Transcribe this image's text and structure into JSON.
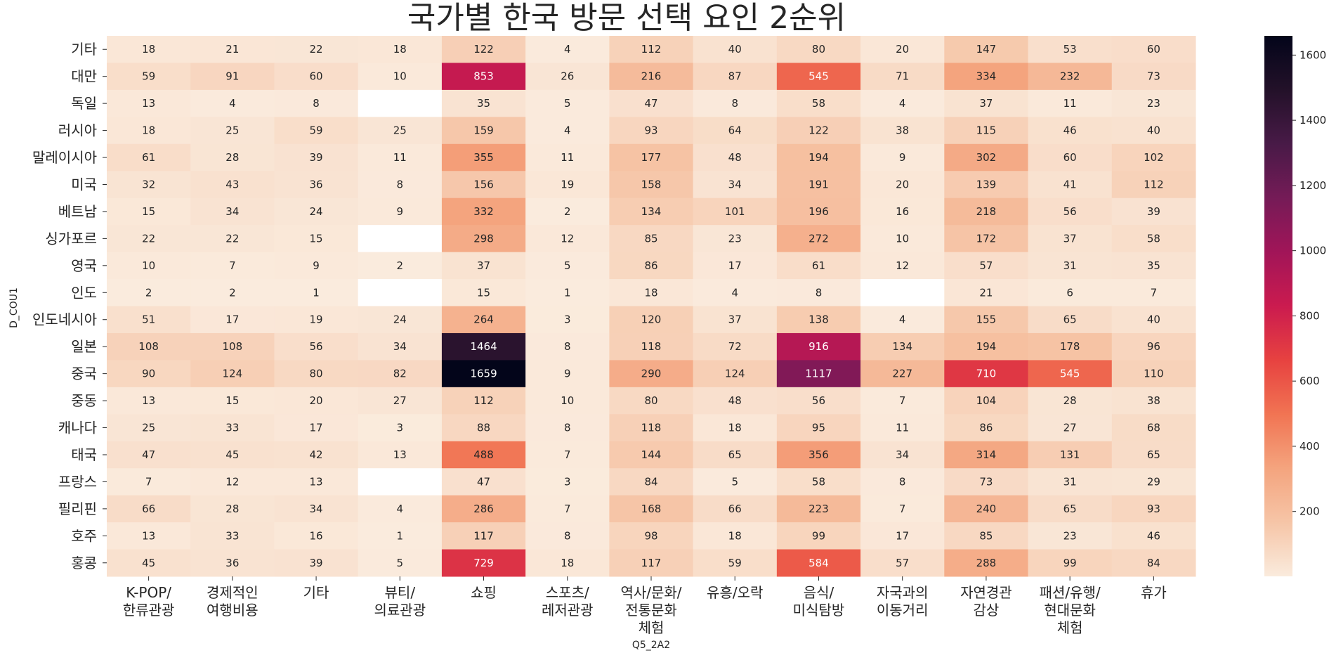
{
  "chart_data": {
    "type": "heatmap",
    "title": "국가별 한국 방문 선택 요인 2순위",
    "xlabel": "Q5_2A2",
    "ylabel": "D_COU1",
    "x_categories": [
      "K-POP/\n한류관광",
      "경제적인\n여행비용",
      "기타",
      "뷰티/\n의료관광",
      "쇼핑",
      "스포츠/\n레저관광",
      "역사/문화/\n전통문화\n체험",
      "유흥/오락",
      "음식/\n미식탐방",
      "자국과의\n이동거리",
      "자연경관\n감상",
      "패션/유행/\n현대문화\n체험",
      "휴가"
    ],
    "y_categories": [
      "기타",
      "대만",
      "독일",
      "러시아",
      "말레이시아",
      "미국",
      "베트남",
      "싱가포르",
      "영국",
      "인도",
      "인도네시아",
      "일본",
      "중국",
      "중동",
      "캐나다",
      "태국",
      "프랑스",
      "필리핀",
      "호주",
      "홍콩"
    ],
    "values": [
      [
        18,
        21,
        22,
        18,
        122,
        4,
        112,
        40,
        80,
        20,
        147,
        53,
        60
      ],
      [
        59,
        91,
        60,
        10,
        853,
        26,
        216,
        87,
        545,
        71,
        334,
        232,
        73
      ],
      [
        13,
        4,
        8,
        null,
        35,
        5,
        47,
        8,
        58,
        4,
        37,
        11,
        23
      ],
      [
        18,
        25,
        59,
        25,
        159,
        4,
        93,
        64,
        122,
        38,
        115,
        46,
        40
      ],
      [
        61,
        28,
        39,
        11,
        355,
        11,
        177,
        48,
        194,
        9,
        302,
        60,
        102
      ],
      [
        32,
        43,
        36,
        8,
        156,
        19,
        158,
        34,
        191,
        20,
        139,
        41,
        112
      ],
      [
        15,
        34,
        24,
        9,
        332,
        2,
        134,
        101,
        196,
        16,
        218,
        56,
        39
      ],
      [
        22,
        22,
        15,
        null,
        298,
        12,
        85,
        23,
        272,
        10,
        172,
        37,
        58
      ],
      [
        10,
        7,
        9,
        2,
        37,
        5,
        86,
        17,
        61,
        12,
        57,
        31,
        35
      ],
      [
        2,
        2,
        1,
        null,
        15,
        1,
        18,
        4,
        8,
        null,
        21,
        6,
        7
      ],
      [
        51,
        17,
        19,
        24,
        264,
        3,
        120,
        37,
        138,
        4,
        155,
        65,
        40
      ],
      [
        108,
        108,
        56,
        34,
        1464,
        8,
        118,
        72,
        916,
        134,
        194,
        178,
        96
      ],
      [
        90,
        124,
        80,
        82,
        1659,
        9,
        290,
        124,
        1117,
        227,
        710,
        545,
        110
      ],
      [
        13,
        15,
        20,
        27,
        112,
        10,
        80,
        48,
        56,
        7,
        104,
        28,
        38
      ],
      [
        25,
        33,
        17,
        3,
        88,
        8,
        118,
        18,
        95,
        11,
        86,
        27,
        68
      ],
      [
        47,
        45,
        42,
        13,
        488,
        7,
        144,
        65,
        356,
        34,
        314,
        131,
        65
      ],
      [
        7,
        12,
        13,
        null,
        47,
        3,
        84,
        5,
        58,
        8,
        73,
        31,
        29
      ],
      [
        66,
        28,
        34,
        4,
        286,
        7,
        168,
        66,
        223,
        7,
        240,
        65,
        93
      ],
      [
        13,
        33,
        16,
        1,
        117,
        8,
        98,
        18,
        99,
        17,
        85,
        23,
        46
      ],
      [
        45,
        36,
        39,
        5,
        729,
        18,
        117,
        59,
        584,
        57,
        288,
        99,
        84
      ]
    ],
    "color_range": [
      1,
      1659
    ],
    "colormap": "rocket_r",
    "colorbar_ticks": [
      200,
      400,
      600,
      800,
      1000,
      1200,
      1400,
      1600
    ]
  }
}
